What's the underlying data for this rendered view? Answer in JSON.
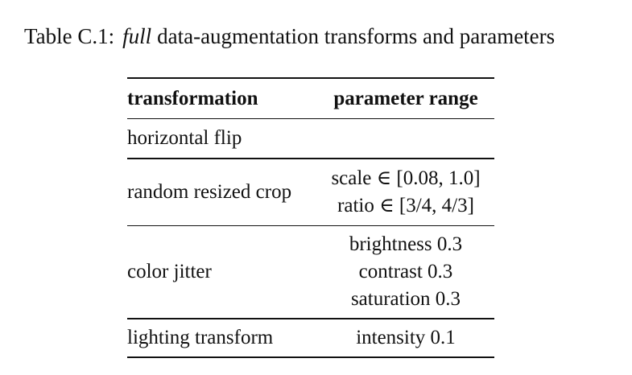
{
  "caption": {
    "label": "Table C.1:",
    "emphasis": "full",
    "text": "data-augmentation transforms and parameters"
  },
  "table": {
    "headers": {
      "transformation": "transformation",
      "parameter_range": "parameter range"
    },
    "rows": [
      {
        "transformation": "horizontal flip",
        "params": []
      },
      {
        "transformation": "random resized crop",
        "params": [
          "scale ∈ [0.08, 1.0]",
          "ratio ∈ [3/4, 4/3]"
        ]
      },
      {
        "transformation": "color jitter",
        "params": [
          "brightness 0.3",
          "contrast 0.3",
          "saturation 0.3"
        ]
      },
      {
        "transformation": "lighting transform",
        "params": [
          "intensity 0.1"
        ]
      }
    ]
  }
}
